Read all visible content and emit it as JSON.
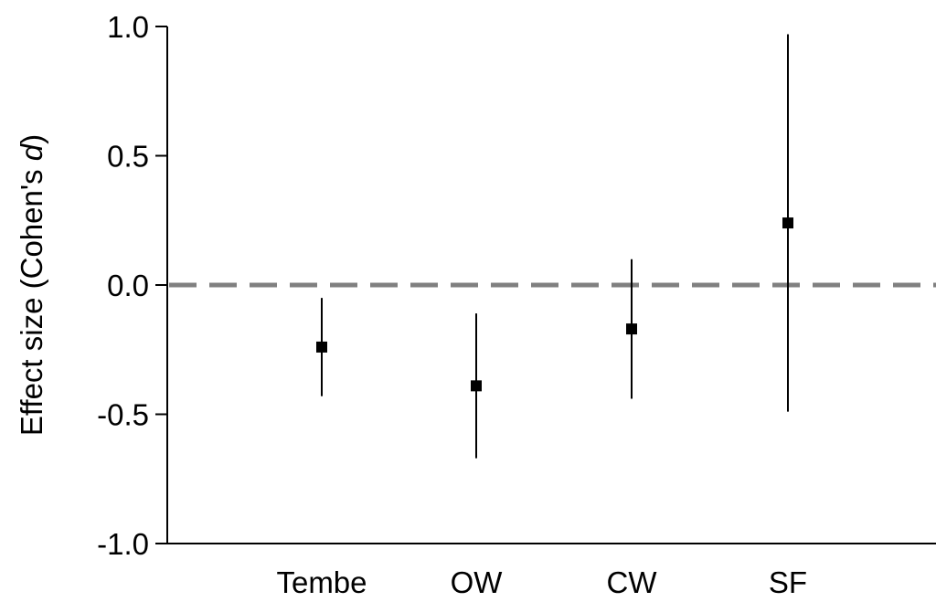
{
  "chart_data": {
    "type": "scatter",
    "subtype": "point-with-error-bars",
    "title": "",
    "xlabel": "",
    "ylabel": "Effect size (Cohen's d)",
    "ylabel_parts": {
      "main": "Effect size (Cohen's ",
      "italic": "d",
      "close": ")"
    },
    "categories": [
      "Tembe",
      "OW",
      "CW",
      "SF"
    ],
    "values": [
      -0.24,
      -0.39,
      -0.17,
      0.24
    ],
    "error_low": [
      -0.43,
      -0.67,
      -0.44,
      -0.49
    ],
    "error_high": [
      -0.05,
      -0.11,
      0.1,
      0.97
    ],
    "ylim": [
      -1.0,
      1.0
    ],
    "y_ticks": [
      1.0,
      0.5,
      0.0,
      -0.5,
      -1.0
    ],
    "y_tick_labels": [
      "1.0",
      "0.5",
      "0.0",
      "-0.5",
      "-1.0"
    ],
    "reference_line": {
      "value": 0.0,
      "style": "dashed",
      "color": "#808080"
    },
    "marker_color": "#000000",
    "grid": false,
    "legend": "none"
  }
}
